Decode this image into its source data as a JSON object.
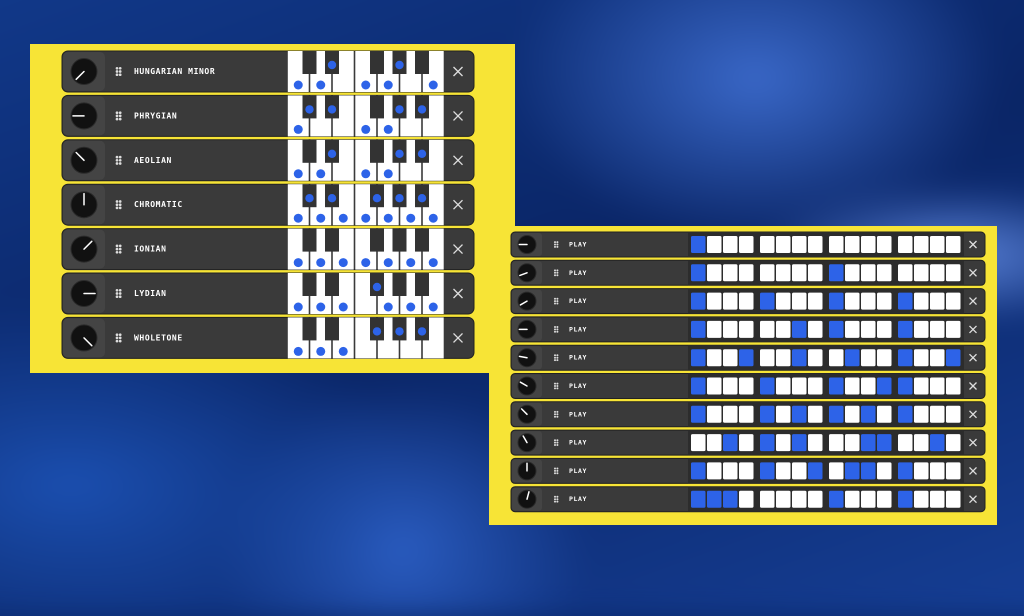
{
  "scale_panel": {
    "rows": [
      {
        "label": "HUNGARIAN MINOR",
        "notes": [
          1,
          0,
          1,
          1,
          0,
          1,
          0,
          1,
          1,
          0,
          0,
          1
        ],
        "knob": 225
      },
      {
        "label": "PHRYGIAN",
        "notes": [
          1,
          1,
          0,
          1,
          0,
          1,
          0,
          1,
          1,
          0,
          1,
          0
        ],
        "knob": 270
      },
      {
        "label": "AEOLIAN",
        "notes": [
          1,
          0,
          1,
          1,
          0,
          1,
          0,
          1,
          1,
          0,
          1,
          0
        ],
        "knob": 315
      },
      {
        "label": "CHROMATIC",
        "notes": [
          1,
          1,
          1,
          1,
          1,
          1,
          1,
          1,
          1,
          1,
          1,
          1
        ],
        "knob": 0
      },
      {
        "label": "IONIAN",
        "notes": [
          1,
          0,
          1,
          0,
          1,
          1,
          0,
          1,
          0,
          1,
          0,
          1
        ],
        "knob": 45
      },
      {
        "label": "LYDIAN",
        "notes": [
          1,
          0,
          1,
          0,
          1,
          0,
          1,
          1,
          0,
          1,
          0,
          1
        ],
        "knob": 90
      },
      {
        "label": "WHOLETONE",
        "notes": [
          1,
          0,
          1,
          0,
          1,
          0,
          1,
          0,
          1,
          0,
          1,
          0
        ],
        "knob": 135
      }
    ]
  },
  "sequencer_panel": {
    "rows": [
      {
        "label": "PLAY",
        "steps": [
          1,
          0,
          0,
          0,
          0,
          0,
          0,
          0,
          0,
          0,
          0,
          0,
          0,
          0,
          0,
          0
        ],
        "knob": 270
      },
      {
        "label": "PLAY",
        "steps": [
          1,
          0,
          0,
          0,
          0,
          0,
          0,
          0,
          1,
          0,
          0,
          0,
          0,
          0,
          0,
          0
        ],
        "knob": 250
      },
      {
        "label": "PLAY",
        "steps": [
          1,
          0,
          0,
          0,
          1,
          0,
          0,
          0,
          1,
          0,
          0,
          0,
          1,
          0,
          0,
          0
        ],
        "knob": 240
      },
      {
        "label": "PLAY",
        "steps": [
          1,
          0,
          0,
          0,
          0,
          0,
          1,
          0,
          1,
          0,
          0,
          0,
          1,
          0,
          0,
          0
        ],
        "knob": 270
      },
      {
        "label": "PLAY",
        "steps": [
          1,
          0,
          0,
          1,
          0,
          0,
          1,
          0,
          0,
          1,
          0,
          0,
          1,
          0,
          0,
          1
        ],
        "knob": 280
      },
      {
        "label": "PLAY",
        "steps": [
          1,
          0,
          0,
          0,
          1,
          0,
          0,
          0,
          1,
          0,
          0,
          1,
          1,
          0,
          0,
          0
        ],
        "knob": 300
      },
      {
        "label": "PLAY",
        "steps": [
          1,
          0,
          0,
          0,
          1,
          0,
          1,
          0,
          1,
          0,
          1,
          0,
          1,
          0,
          0,
          0
        ],
        "knob": 315
      },
      {
        "label": "PLAY",
        "steps": [
          0,
          0,
          1,
          0,
          1,
          0,
          1,
          0,
          0,
          0,
          1,
          1,
          0,
          0,
          1,
          0
        ],
        "knob": 330
      },
      {
        "label": "PLAY",
        "steps": [
          1,
          0,
          0,
          0,
          1,
          0,
          0,
          1,
          0,
          1,
          1,
          0,
          1,
          0,
          0,
          0
        ],
        "knob": 0
      },
      {
        "label": "PLAY",
        "steps": [
          1,
          1,
          1,
          0,
          0,
          0,
          0,
          0,
          1,
          0,
          0,
          0,
          1,
          0,
          0,
          0
        ],
        "knob": 15
      }
    ]
  }
}
